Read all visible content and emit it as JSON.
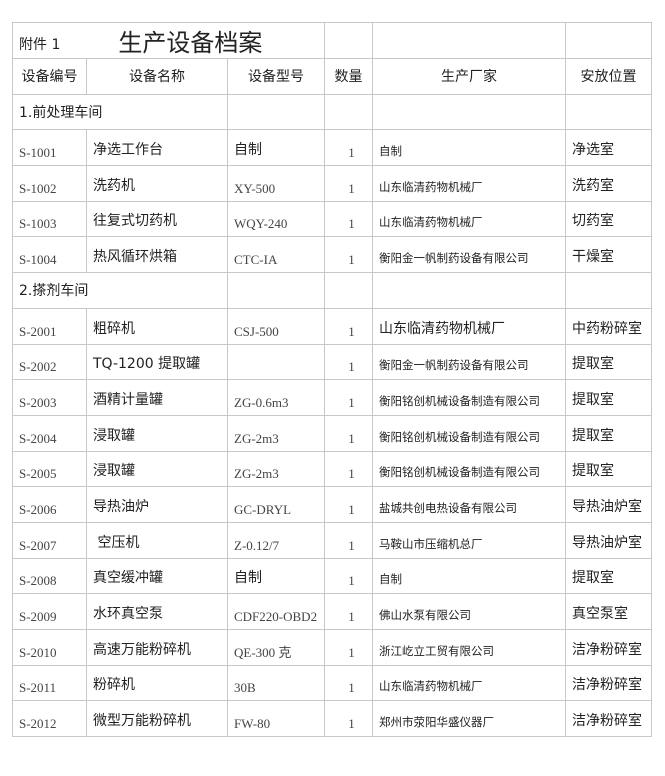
{
  "document": {
    "attachment_label": "附件 1",
    "title": "生产设备档案",
    "headers": [
      "设备编号",
      "设备名称",
      "设备型号",
      "数量",
      "生产厂家",
      "安放位置"
    ],
    "sections": [
      {
        "label": "1.前处理车间",
        "rows": [
          {
            "code": "S-1001",
            "name": "净选工作台",
            "model": "自制",
            "qty": "1",
            "maker": "自制",
            "location": "净选室"
          },
          {
            "code": "S-1002",
            "name": "洗药机",
            "model": "XY-500",
            "qty": "1",
            "maker": "山东临清药物机械厂",
            "location": "洗药室"
          },
          {
            "code": "S-1003",
            "name": "往复式切药机",
            "model": "WQY-240",
            "qty": "1",
            "maker": "山东临清药物机械厂",
            "location": "切药室"
          },
          {
            "code": "S-1004",
            "name": "热风循环烘箱",
            "model": "CTC-IA",
            "qty": "1",
            "maker": "衡阳金一帆制药设备有限公司",
            "location": "干燥室"
          }
        ]
      },
      {
        "label": "2.搽剂车间",
        "rows": [
          {
            "code": "S-2001",
            "name": "粗碎机",
            "model": "CSJ-500",
            "qty": "1",
            "maker": "山东临清药物机械厂",
            "location": "中药粉碎室"
          },
          {
            "code": "S-2002",
            "name": "TQ-1200 提取罐",
            "model": "",
            "qty": "1",
            "maker": "衡阳金一帆制药设备有限公司",
            "location": "提取室"
          },
          {
            "code": "S-2003",
            "name": "酒精计量罐",
            "model": "ZG-0.6m3",
            "qty": "1",
            "maker": "衡阳铭创机械设备制造有限公司",
            "location": "提取室"
          },
          {
            "code": "S-2004",
            "name": "浸取罐",
            "model": "ZG-2m3",
            "qty": "1",
            "maker": "衡阳铭创机械设备制造有限公司",
            "location": "提取室"
          },
          {
            "code": "S-2005",
            "name": "浸取罐",
            "model": "ZG-2m3",
            "qty": "1",
            "maker": "衡阳铭创机械设备制造有限公司",
            "location": "提取室"
          },
          {
            "code": "S-2006",
            "name": "导热油炉",
            "model": "GC-DRYL",
            "qty": "1",
            "maker": "盐城共创电热设备有限公司",
            "location": "导热油炉室"
          },
          {
            "code": "S-2007",
            "name": " 空压机",
            "model": "Z-0.12/7",
            "qty": "1",
            "maker": "马鞍山市压缩机总厂",
            "location": "导热油炉室"
          },
          {
            "code": "S-2008",
            "name": "真空缓冲罐",
            "model": "自制",
            "qty": "1",
            "maker": "自制",
            "location": "提取室"
          },
          {
            "code": "S-2009",
            "name": "水环真空泵",
            "model": "CDF220-OBD2",
            "qty": "1",
            "maker": "佛山水泵有限公司",
            "location": "真空泵室"
          },
          {
            "code": "S-2010",
            "name": "高速万能粉碎机",
            "model": "QE-300 克",
            "qty": "1",
            "maker": "浙江屹立工贸有限公司",
            "location": "洁净粉碎室"
          },
          {
            "code": "S-2011",
            "name": "粉碎机",
            "model": "30B",
            "qty": "1",
            "maker": "山东临清药物机械厂",
            "location": "洁净粉碎室"
          },
          {
            "code": "S-2012",
            "name": "微型万能粉碎机",
            "model": "FW-80",
            "qty": "1",
            "maker": "郑州市荥阳华盛仪器厂",
            "location": "洁净粉碎室"
          }
        ]
      }
    ]
  }
}
